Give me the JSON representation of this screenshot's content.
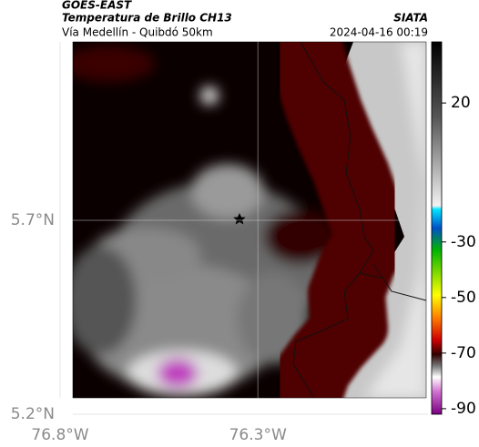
{
  "header": {
    "satellite": "GOES-EAST",
    "product": "Temperatura de Brillo CH13",
    "source": "SIATA",
    "route": "Vía Medellín - Quibdó 50km",
    "timestamp": "2024-04-16 00:19"
  },
  "map": {
    "xlim": [
      -76.8,
      -75.87
    ],
    "ylim": [
      5.2,
      6.16
    ],
    "xticks": [
      {
        "value": -76.8,
        "label": "76.8°W"
      },
      {
        "value": -76.3,
        "label": "76.3°W"
      }
    ],
    "yticks": [
      {
        "value": 5.7,
        "label": "5.7°N"
      },
      {
        "value": 5.2,
        "label": "5.2°N"
      }
    ]
  },
  "colorbar": {
    "lim": [
      -92,
      42
    ],
    "ticks": [
      20,
      -30,
      -50,
      -70,
      -90
    ]
  }
}
